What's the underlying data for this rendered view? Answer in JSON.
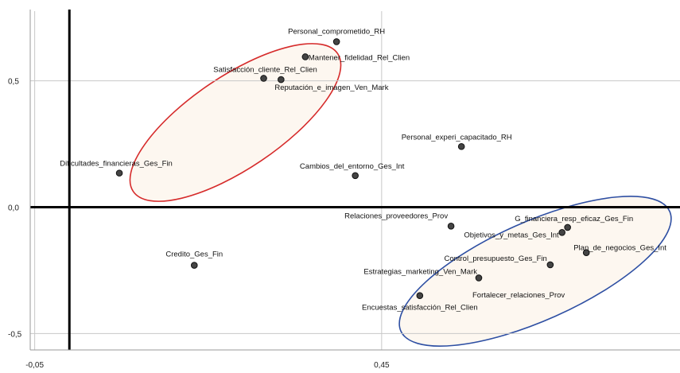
{
  "chart_data": {
    "type": "scatter",
    "title": "",
    "xlabel": "",
    "ylabel": "",
    "xlim": [
      -0.1,
      0.88
    ],
    "ylim": [
      -0.565,
      0.82
    ],
    "x_ticks": [
      {
        "value": -0.05,
        "label": "-0,05"
      },
      {
        "value": 0.45,
        "label": "0,45"
      }
    ],
    "y_ticks": [
      {
        "value": 0.5,
        "label": "0,5"
      },
      {
        "value": 0.0,
        "label": "0,0"
      },
      {
        "value": -0.5,
        "label": "-0,5"
      }
    ],
    "grid": true,
    "points": [
      {
        "x": 0.385,
        "y": 0.655,
        "label": "Personal_comprometido_RH"
      },
      {
        "x": 0.34,
        "y": 0.595,
        "label": "Mantener_fidelidad_Rel_Clien"
      },
      {
        "x": 0.28,
        "y": 0.51,
        "label": "Satisfacción_cliente_Rel_Clien"
      },
      {
        "x": 0.305,
        "y": 0.505,
        "label": "Reputación_e_imagen_Ven_Mark"
      },
      {
        "x": 0.072,
        "y": 0.135,
        "label": "Dificultades_financieras_Ges_Fin"
      },
      {
        "x": 0.412,
        "y": 0.125,
        "label": "Cambios_del_entorno_Ges_Int"
      },
      {
        "x": 0.565,
        "y": 0.24,
        "label": "Personal_experi_capacitado_RH"
      },
      {
        "x": 0.55,
        "y": -0.075,
        "label": "Relaciones_proveedores_Prov"
      },
      {
        "x": 0.718,
        "y": -0.08,
        "label": "G_financiera_resp_eficaz_Ges_Fin"
      },
      {
        "x": 0.71,
        "y": -0.1,
        "label": "Objetivos_y_metas_Ges_Int"
      },
      {
        "x": 0.745,
        "y": -0.18,
        "label": "Plan_de_negocios_Ges_Int"
      },
      {
        "x": 0.693,
        "y": -0.228,
        "label": "Control_presupuesto_Ges_Fin"
      },
      {
        "x": 0.59,
        "y": -0.28,
        "label": "Estrategias_marketing_Ven_Mark"
      },
      {
        "x": 0.18,
        "y": -0.23,
        "label": "Credito_Ges_Fin"
      },
      {
        "x": 0.505,
        "y": -0.35,
        "label": "Encuestas_satisfacción_Rel_Clien"
      }
    ],
    "annotations": [
      {
        "text": "Fortalecer_relaciones_Prov"
      }
    ],
    "groups": [
      {
        "color": "#d62b2b",
        "fill": "#fdf7f0",
        "members": [
          "Personal_comprometido_RH",
          "Mantener_fidelidad_Rel_Clien",
          "Satisfacción_cliente_Rel_Clien",
          "Reputación_e_imagen_Ven_Mark",
          "Dificultades_financieras_Ges_Fin"
        ]
      },
      {
        "color": "#2e4fa3",
        "fill": "#fdf7f0",
        "members": [
          "G_financiera_resp_eficaz_Ges_Fin",
          "Objetivos_y_metas_Ges_Int",
          "Plan_de_negocios_Ges_Int",
          "Control_presupuesto_Ges_Fin",
          "Estrategias_marketing_Ven_Mark",
          "Encuestas_satisfacción_Rel_Clien"
        ]
      }
    ]
  }
}
